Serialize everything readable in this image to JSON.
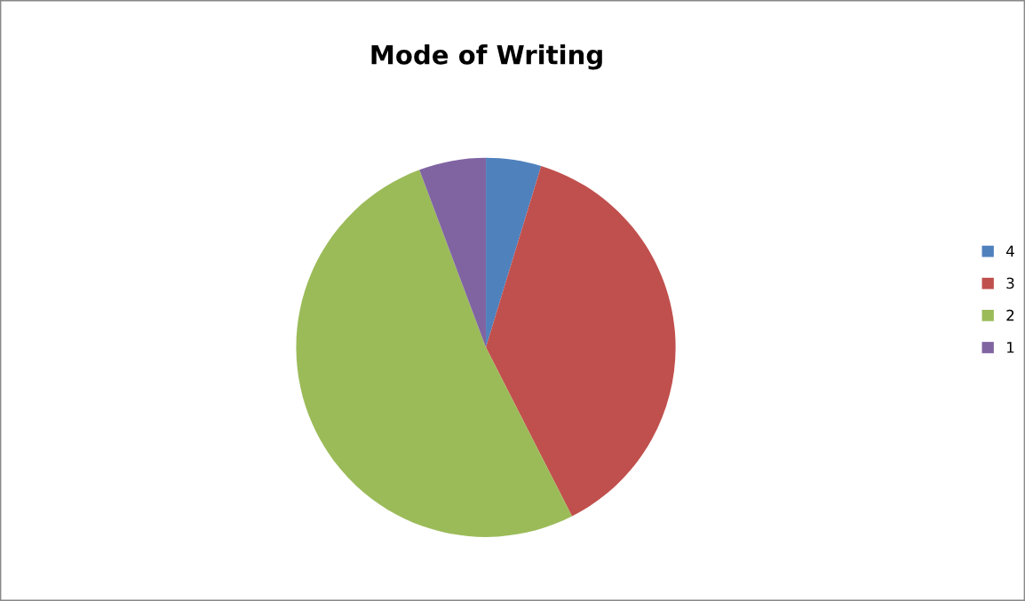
{
  "chart_data": {
    "type": "pie",
    "title": "Mode of Writing",
    "categories": [
      "4",
      "3",
      "2",
      "1"
    ],
    "values": [
      4.7,
      37.8,
      51.8,
      5.7
    ],
    "colors": [
      "#4f81bd",
      "#c0504d",
      "#9bbb59",
      "#8064a2"
    ],
    "legend": "right"
  }
}
